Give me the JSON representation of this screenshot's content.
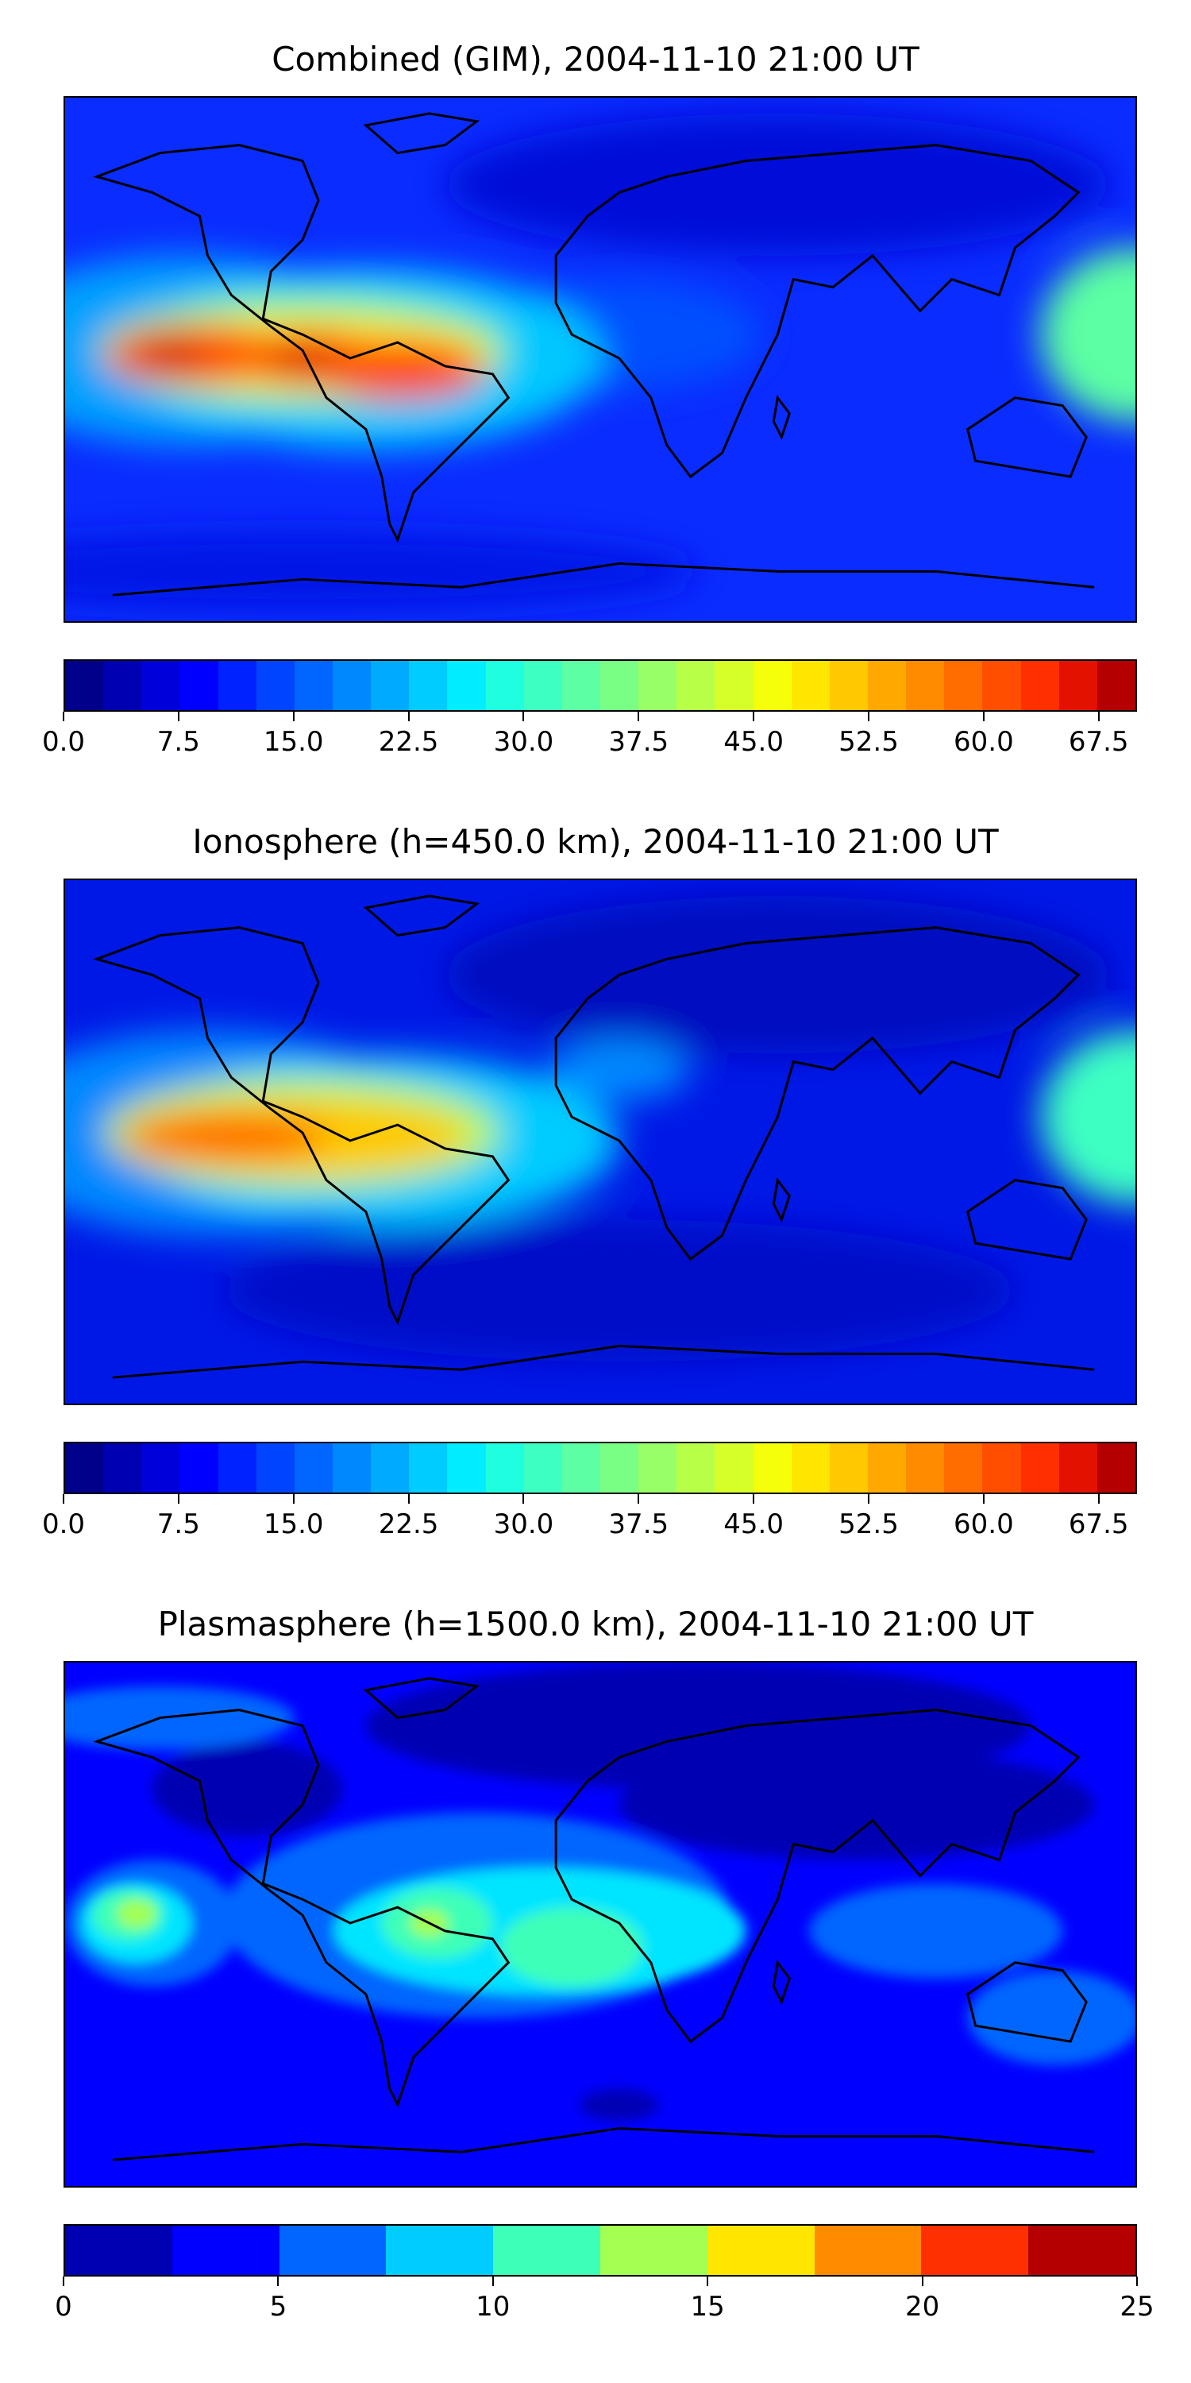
{
  "panels": [
    {
      "title": "Combined (GIM), 2004-11-10 21:00 UT",
      "colorbar": {
        "min": 0,
        "max": 70,
        "levels": 28,
        "tick_labels": [
          "0.0",
          "7.5",
          "15.0",
          "22.5",
          "30.0",
          "37.5",
          "45.0",
          "52.5",
          "60.0",
          "67.5"
        ],
        "tick_values": [
          0,
          7.5,
          15,
          22.5,
          30,
          37.5,
          45,
          52.5,
          60,
          67.5
        ]
      }
    },
    {
      "title": "Ionosphere  (h=450.0 km), 2004-11-10 21:00 UT",
      "colorbar": {
        "min": 0,
        "max": 70,
        "levels": 28,
        "tick_labels": [
          "0.0",
          "7.5",
          "15.0",
          "22.5",
          "30.0",
          "37.5",
          "45.0",
          "52.5",
          "60.0",
          "67.5"
        ],
        "tick_values": [
          0,
          7.5,
          15,
          22.5,
          30,
          37.5,
          45,
          52.5,
          60,
          67.5
        ]
      }
    },
    {
      "title": "Plasmasphere (h=1500.0 km), 2004-11-10 21:00 UT",
      "colorbar": {
        "min": 0,
        "max": 25,
        "levels": 10,
        "tick_labels": [
          "0",
          "5",
          "10",
          "15",
          "20",
          "25"
        ],
        "tick_values": [
          0,
          5,
          10,
          15,
          20,
          25
        ]
      }
    }
  ],
  "colors": {
    "jet28": [
      "#00008b",
      "#0000b3",
      "#0000da",
      "#0000ff",
      "#0022ff",
      "#0044ff",
      "#0066ff",
      "#0088ff",
      "#00aaff",
      "#00ccff",
      "#00eeff",
      "#1fffe0",
      "#3dffc2",
      "#5cffa3",
      "#7aff85",
      "#99ff66",
      "#b8ff47",
      "#d6ff29",
      "#f5ff0a",
      "#ffe600",
      "#ffc800",
      "#ffa900",
      "#ff8b00",
      "#ff6c00",
      "#ff4e00",
      "#ff2f00",
      "#e31100",
      "#b40000"
    ],
    "jet10": [
      "#0000b3",
      "#0000ff",
      "#0066ff",
      "#00ccff",
      "#3dffb8",
      "#a3ff52",
      "#ffe600",
      "#ff8b00",
      "#ff3000",
      "#b40000"
    ]
  }
}
